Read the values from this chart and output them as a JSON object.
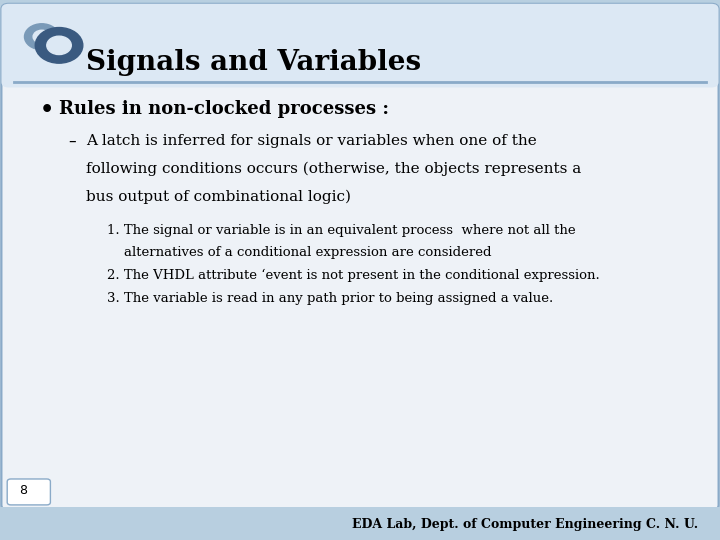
{
  "title": "Signals and Variables",
  "background_color": "#b8cfe0",
  "slide_bg": "#eef2f7",
  "header_bg": "#dce8f4",
  "title_color": "#000000",
  "title_fontsize": 20,
  "bullet_color": "#000000",
  "bullet1": "Rules in non-clocked processes :",
  "dash1_line1": "A latch is inferred for signals or variables when one of the",
  "dash1_line2": "following conditions occurs (otherwise, the objects represents a",
  "dash1_line3": "bus output of combinational logic)",
  "num1_line1": "1. The signal or variable is in an equivalent process  where not all the",
  "num1_line2": "    alternatives of a conditional expression are considered",
  "num2": "2. The VHDL attribute ‘event is not present in the conditional expression.",
  "num3": "3. The variable is read in any path prior to being assigned a value.",
  "footer": "EDA Lab, Dept. of Computer Engineering C. N. U.",
  "page_num": "8",
  "accent_color": "#4a6fa0",
  "line_color": "#8aaac8",
  "circle1_color": "#7a9ab8",
  "circle2_color": "#3a5a80"
}
